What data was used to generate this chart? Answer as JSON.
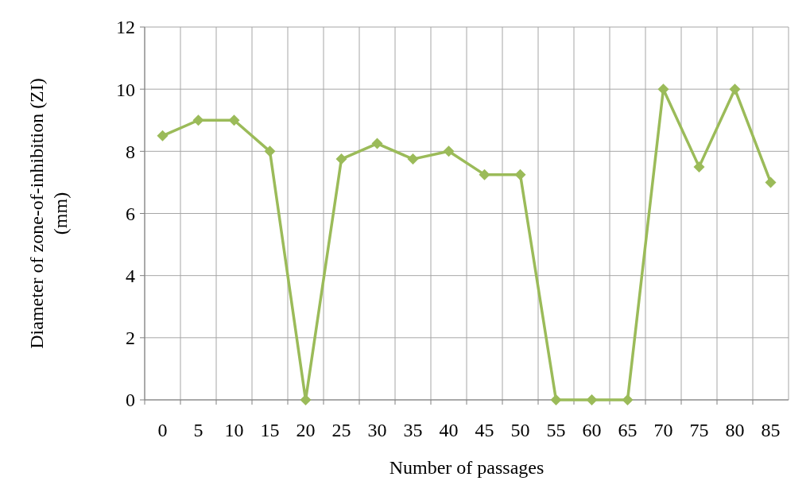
{
  "chart_data": {
    "type": "line",
    "xlabel": "Number of passages",
    "ylabel": "Diameter of zone-of-inhibition (ZI) (mm)",
    "categories": [
      "0",
      "5",
      "10",
      "15",
      "20",
      "25",
      "30",
      "35",
      "40",
      "45",
      "50",
      "55",
      "60",
      "65",
      "70",
      "75",
      "80",
      "85"
    ],
    "series": [
      {
        "color": "#9bbb59",
        "values": [
          8.5,
          9,
          9,
          8,
          0,
          7.75,
          8.25,
          7.75,
          8,
          7.25,
          7.25,
          0,
          0,
          0,
          10,
          7.5,
          10,
          7
        ]
      }
    ],
    "ylim": [
      0,
      12
    ],
    "yticks": [
      0,
      2,
      4,
      6,
      8,
      10,
      12
    ],
    "grid": true,
    "marker": "diamond",
    "line_style": "solid"
  }
}
